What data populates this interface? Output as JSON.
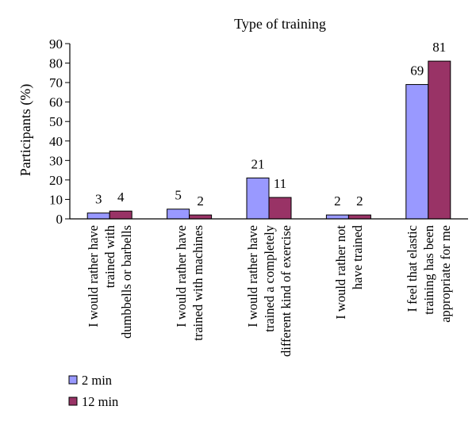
{
  "chart_data": {
    "type": "bar",
    "title": "Type of training",
    "xlabel": "",
    "ylabel": "Participants (%)",
    "ylim": [
      0,
      90
    ],
    "yticks": [
      0,
      10,
      20,
      30,
      40,
      50,
      60,
      70,
      80,
      90
    ],
    "grid": false,
    "legend_position": "bottom-left",
    "categories": [
      [
        "I would rather have",
        "trained with",
        "dumbbells or barbells"
      ],
      [
        "I would rather have",
        "trained with machines"
      ],
      [
        "I would rather have",
        "trained a completely",
        "different kind of exercise"
      ],
      [
        "I would rather not",
        "have trained"
      ],
      [
        "I feel that elastic",
        "training has been",
        "appropriate for me"
      ]
    ],
    "series": [
      {
        "name": "2 min",
        "color": "#9999ff",
        "values": [
          3,
          5,
          21,
          2,
          69
        ]
      },
      {
        "name": "12 min",
        "color": "#993366",
        "values": [
          4,
          2,
          11,
          2,
          81
        ]
      }
    ]
  }
}
